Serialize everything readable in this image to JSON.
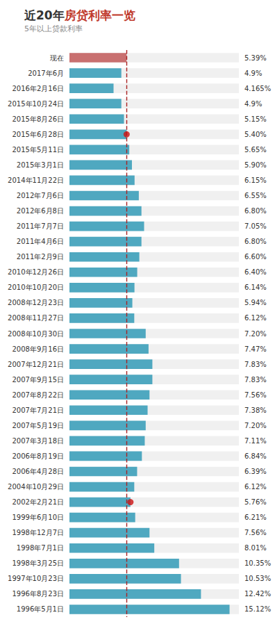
{
  "chart_data": {
    "type": "bar",
    "orientation": "horizontal",
    "title": [
      {
        "text": "近20年",
        "color": "#333333"
      },
      {
        "text": "房贷利率一览",
        "color": "#c0392b"
      }
    ],
    "subtitle": "5年以上贷款利率",
    "categories": [
      "现在",
      "2017年6月",
      "2016年2月16日",
      "2015年10月24日",
      "2015年8月26日",
      "2015年6月28日",
      "2015年5月11日",
      "2015年3月1日",
      "2014年11月22日",
      "2012年7月6日",
      "2012年6月8日",
      "2011年7月7日",
      "2011年4月6日",
      "2011年2月9日",
      "2010年12月26日",
      "2010年10月20日",
      "2008年12月23日",
      "2008年11月27日",
      "2008年10月30日",
      "2008年9月16日",
      "2007年12月21日",
      "2007年9月15日",
      "2007年8月22日",
      "2007年7月21日",
      "2007年5月19日",
      "2007年3月18日",
      "2006年8月19日",
      "2006年4月28日",
      "2004年10月29日",
      "2002年2月21日",
      "1999年6月10日",
      "1998年12月7日",
      "1998年7月1日",
      "1998年3月25日",
      "1997年10月23日",
      "1996年8月23日",
      "1996年5月1日"
    ],
    "values": [
      5.39,
      4.9,
      4.165,
      4.9,
      5.15,
      5.4,
      5.65,
      5.9,
      6.15,
      6.55,
      6.8,
      7.05,
      6.8,
      6.6,
      6.4,
      6.14,
      5.94,
      6.12,
      7.2,
      7.47,
      7.83,
      7.83,
      7.56,
      7.38,
      7.2,
      7.11,
      6.84,
      6.39,
      6.12,
      5.76,
      6.21,
      7.56,
      8.01,
      10.35,
      10.53,
      12.42,
      15.12
    ],
    "value_labels": [
      "5.39%",
      "4.9%",
      "4.165%",
      "4.9%",
      "5.15%",
      "5.40%",
      "5.65%",
      "5.90%",
      "6.15%",
      "6.55%",
      "6.80%",
      "7.05%",
      "6.80%",
      "6.60%",
      "6.40%",
      "6.14%",
      "5.94%",
      "6.12%",
      "7.20%",
      "7.47%",
      "7.83%",
      "7.83%",
      "7.56%",
      "7.38%",
      "7.20%",
      "7.11%",
      "6.84%",
      "6.39%",
      "6.12%",
      "5.76%",
      "6.21%",
      "7.56%",
      "8.01%",
      "10.35%",
      "10.53%",
      "12.42%",
      "15.12%"
    ],
    "data_labels": true,
    "colors": [
      "#c97070",
      "#4fa8c0",
      "#4fa8c0",
      "#4fa8c0",
      "#4fa8c0",
      "#4fa8c0",
      "#4fa8c0",
      "#4fa8c0",
      "#4fa8c0",
      "#4fa8c0",
      "#4fa8c0",
      "#4fa8c0",
      "#4fa8c0",
      "#4fa8c0",
      "#4fa8c0",
      "#4fa8c0",
      "#4fa8c0",
      "#4fa8c0",
      "#4fa8c0",
      "#4fa8c0",
      "#4fa8c0",
      "#4fa8c0",
      "#4fa8c0",
      "#4fa8c0",
      "#4fa8c0",
      "#4fa8c0",
      "#4fa8c0",
      "#4fa8c0",
      "#4fa8c0",
      "#4fa8c0",
      "#4fa8c0",
      "#4fa8c0",
      "#4fa8c0",
      "#4fa8c0",
      "#4fa8c0",
      "#4fa8c0",
      "#4fa8c0"
    ],
    "xlim": [
      0,
      16
    ],
    "reference_line": {
      "value": 5.39,
      "color": "#aa2222",
      "line_style": "dashed"
    },
    "dot_indices": [
      5,
      29
    ],
    "dot_color": "#cc1111",
    "tick_labels": "y",
    "grid": false
  }
}
